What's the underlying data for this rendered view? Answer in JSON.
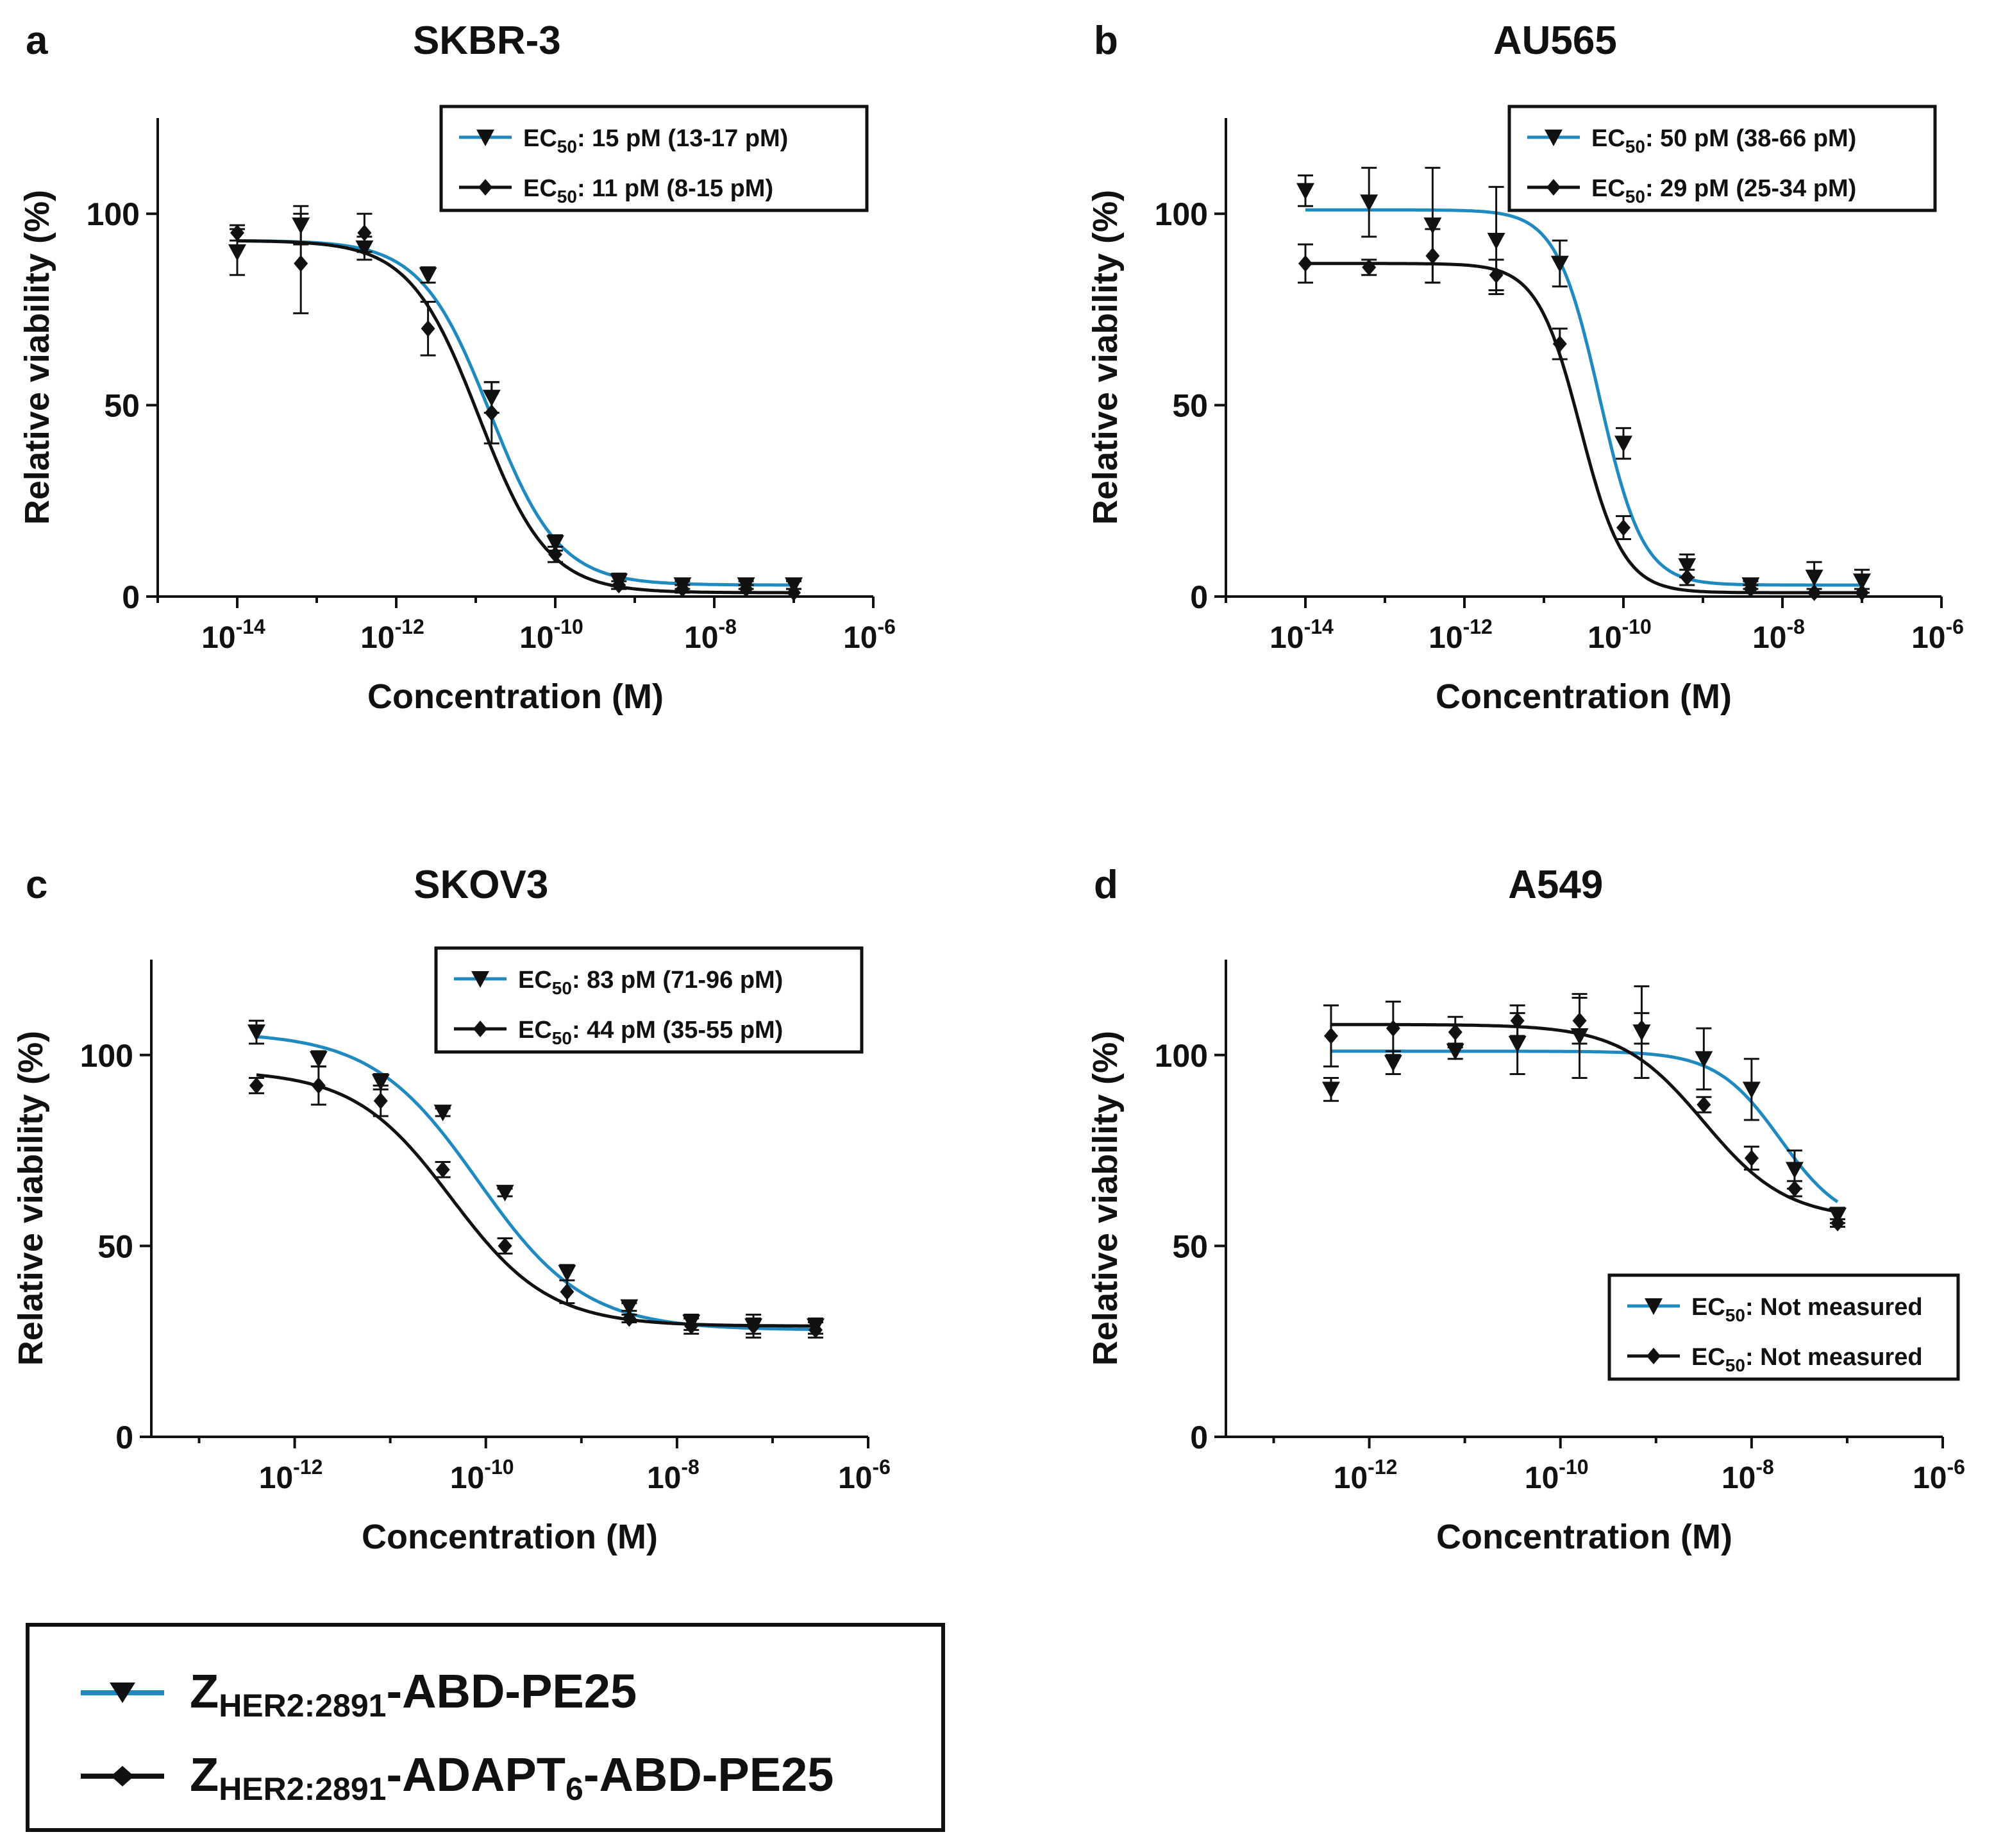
{
  "colors": {
    "blue": "#1f8ac0",
    "black": "#111111"
  },
  "legend": {
    "series_a": {
      "prefix": "Z",
      "sub": "HER2:2891",
      "suffix": "-ABD-PE25"
    },
    "series_b": {
      "prefix": "Z",
      "sub": "HER2:2891",
      "suffix_1": "-ADAPT",
      "sub_2": "6",
      "suffix_2": "-ABD-PE25"
    }
  },
  "chart_data": [
    {
      "panel": "a",
      "title": "SKBR-3",
      "type": "line",
      "xlabel": "Concentration (M)",
      "ylabel": "Relative viability (%)",
      "xscale": "log",
      "xlim_log": [
        -15,
        -6
      ],
      "ylim": [
        0,
        125
      ],
      "x_ticks_log": [
        -14,
        -12,
        -10,
        -8,
        -6
      ],
      "y_ticks": [
        0,
        50,
        100
      ],
      "legend_position": "top-right",
      "series": [
        {
          "name": "ZHER2:2891-ABD-PE25",
          "color": "blue",
          "marker": "triangle-down",
          "legend_label": "EC50: 15 pM (13-17 pM)",
          "fit": {
            "top": 93,
            "bottom": 3,
            "ec50_log": -10.82,
            "hill": 1.0
          },
          "x_log": [
            -14,
            -13.2,
            -12.4,
            -11.6,
            -10.8,
            -10.0,
            -9.2,
            -8.4,
            -7.6,
            -7.0
          ],
          "y": [
            90,
            97,
            91,
            84,
            52,
            14,
            4,
            3,
            3,
            3
          ],
          "err": [
            6,
            5,
            3,
            2,
            4,
            2,
            2,
            1,
            1,
            1
          ]
        },
        {
          "name": "ZHER2:2891-ADAPT6-ABD-PE25",
          "color": "black",
          "marker": "diamond",
          "legend_label": "EC50: 11 pM (8-15 pM)",
          "fit": {
            "top": 93,
            "bottom": 1,
            "ec50_log": -10.96,
            "hill": 1.0
          },
          "x_log": [
            -14,
            -13.2,
            -12.4,
            -11.6,
            -10.8,
            -10.0,
            -9.2,
            -8.4,
            -7.6,
            -7.0
          ],
          "y": [
            95,
            87,
            95,
            70,
            48,
            11,
            3,
            2,
            2,
            1
          ],
          "err": [
            2,
            13,
            5,
            7,
            8,
            2,
            1,
            1,
            1,
            1
          ]
        }
      ]
    },
    {
      "panel": "b",
      "title": "AU565",
      "type": "line",
      "xlabel": "Concentration (M)",
      "ylabel": "Relative viability (%)",
      "xscale": "log",
      "xlim_log": [
        -15,
        -6
      ],
      "ylim": [
        0,
        125
      ],
      "x_ticks_log": [
        -14,
        -12,
        -10,
        -8,
        -6
      ],
      "y_ticks": [
        0,
        50,
        100
      ],
      "legend_position": "top-right",
      "series": [
        {
          "name": "ZHER2:2891-ABD-PE25",
          "color": "blue",
          "marker": "triangle-down",
          "legend_label": "EC50: 50 pM (38-66 pM)",
          "fit": {
            "top": 101,
            "bottom": 3,
            "ec50_log": -10.3,
            "hill": 1.6
          },
          "x_log": [
            -14,
            -13.2,
            -12.4,
            -11.6,
            -10.8,
            -10.0,
            -9.2,
            -8.4,
            -7.6,
            -7.0
          ],
          "y": [
            106,
            103,
            97,
            93,
            87,
            40,
            8,
            3,
            5,
            4
          ],
          "err": [
            4,
            9,
            15,
            14,
            6,
            4,
            3,
            1,
            4,
            3
          ]
        },
        {
          "name": "ZHER2:2891-ADAPT6-ABD-PE25",
          "color": "black",
          "marker": "diamond",
          "legend_label": "EC50: 29 pM (25-34 pM)",
          "fit": {
            "top": 87,
            "bottom": 1,
            "ec50_log": -10.54,
            "hill": 1.6
          },
          "x_log": [
            -14,
            -13.2,
            -12.4,
            -11.6,
            -10.8,
            -10.0,
            -9.2,
            -8.4,
            -7.6,
            -7.0
          ],
          "y": [
            87,
            86,
            89,
            84,
            66,
            18,
            5,
            2,
            1,
            1
          ],
          "err": [
            5,
            2,
            7,
            4,
            4,
            3,
            2,
            1,
            1,
            1
          ]
        }
      ]
    },
    {
      "panel": "c",
      "title": "SKOV3",
      "type": "line",
      "xlabel": "Concentration (M)",
      "ylabel": "Relative viability (%)",
      "xscale": "log",
      "xlim_log": [
        -13.5,
        -6
      ],
      "ylim": [
        0,
        125
      ],
      "x_ticks_log": [
        -12,
        -10,
        -8,
        -6
      ],
      "y_ticks": [
        0,
        50,
        100
      ],
      "legend_position": "top-right",
      "series": [
        {
          "name": "ZHER2:2891-ABD-PE25",
          "color": "blue",
          "marker": "triangle-down",
          "legend_label": "EC50: 83 pM (71-96 pM)",
          "fit": {
            "top": 106,
            "bottom": 28,
            "ec50_log": -10.08,
            "hill": 0.78
          },
          "x_log": [
            -12.4,
            -11.75,
            -11.1,
            -10.45,
            -9.8,
            -9.15,
            -8.5,
            -7.85,
            -7.2,
            -6.55
          ],
          "y": [
            106,
            99,
            93,
            85,
            64,
            43,
            34,
            30,
            29,
            29
          ],
          "err": [
            3,
            2,
            2,
            1,
            1,
            2,
            1,
            2,
            2,
            2
          ]
        },
        {
          "name": "ZHER2:2891-ADAPT6-ABD-PE25",
          "color": "black",
          "marker": "diamond",
          "legend_label": "EC50: 44 pM (35-55 pM)",
          "fit": {
            "top": 96,
            "bottom": 29,
            "ec50_log": -10.36,
            "hill": 0.85
          },
          "x_log": [
            -12.4,
            -11.75,
            -11.1,
            -10.45,
            -9.8,
            -9.15,
            -8.5,
            -7.85,
            -7.2,
            -6.55
          ],
          "y": [
            92,
            92,
            88,
            70,
            50,
            38,
            31,
            29,
            29,
            28
          ],
          "err": [
            2,
            5,
            4,
            2,
            2,
            3,
            1,
            2,
            3,
            2
          ]
        }
      ]
    },
    {
      "panel": "d",
      "title": "A549",
      "type": "line",
      "xlabel": "Concentration (M)",
      "ylabel": "Relative viability (%)",
      "xscale": "log",
      "xlim_log": [
        -13.5,
        -6
      ],
      "ylim": [
        0,
        125
      ],
      "x_ticks_log": [
        -12,
        -10,
        -8,
        -6
      ],
      "y_ticks": [
        0,
        50,
        100
      ],
      "legend_position": "bottom-right",
      "series": [
        {
          "name": "ZHER2:2891-ABD-PE25",
          "color": "blue",
          "marker": "triangle-down",
          "legend_label": "EC50: Not measured",
          "fit": {
            "top": 101,
            "bottom": 55,
            "ec50_log": -7.7,
            "hill": 1.3
          },
          "x_log": [
            -12.4,
            -11.75,
            -11.1,
            -10.45,
            -9.8,
            -9.15,
            -8.5,
            -8.0,
            -7.55,
            -7.1
          ],
          "y": [
            91,
            98,
            101,
            103,
            105,
            106,
            99,
            91,
            70,
            58
          ],
          "err": [
            3,
            3,
            2,
            8,
            11,
            12,
            8,
            8,
            5,
            2
          ]
        },
        {
          "name": "ZHER2:2891-ADAPT6-ABD-PE25",
          "color": "black",
          "marker": "diamond",
          "legend_label": "EC50: Not measured",
          "fit": {
            "top": 108,
            "bottom": 57,
            "ec50_log": -8.5,
            "hill": 1.0
          },
          "x_log": [
            -12.4,
            -11.75,
            -11.1,
            -10.45,
            -9.8,
            -9.15,
            -8.5,
            -8.0,
            -7.55,
            -7.1
          ],
          "y": [
            105,
            107,
            106,
            109,
            109,
            107,
            87,
            73,
            65,
            56
          ],
          "err": [
            8,
            7,
            4,
            4,
            6,
            4,
            2,
            3,
            2,
            1
          ]
        }
      ]
    }
  ]
}
